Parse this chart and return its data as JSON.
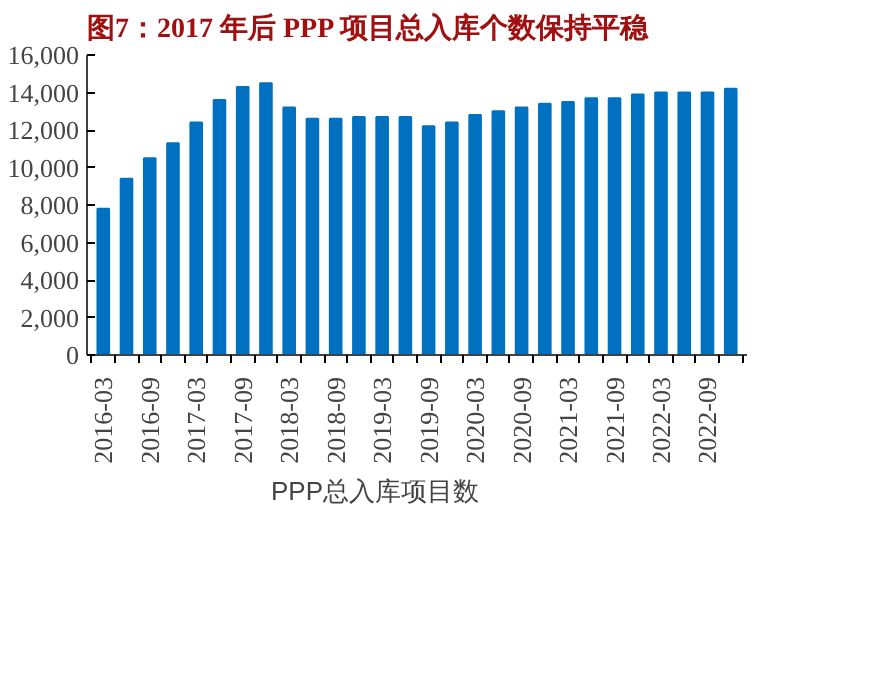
{
  "chart_data": {
    "type": "bar",
    "title": "图7：2017 年后 PPP 项目总入库个数保持平稳",
    "categories": [
      "2016-03",
      null,
      "2016-09",
      null,
      "2017-03",
      null,
      "2017-09",
      null,
      "2018-03",
      null,
      "2018-09",
      null,
      "2019-03",
      null,
      "2019-09",
      null,
      "2020-03",
      null,
      "2020-09",
      null,
      "2021-03",
      null,
      "2021-09",
      null,
      "2022-03",
      null,
      "2022-09",
      null
    ],
    "series": [
      {
        "name": "PPP总入库项目数",
        "color": "#0070c0",
        "values": [
          7800,
          9400,
          10500,
          11300,
          12400,
          13600,
          14300,
          14500,
          13200,
          12600,
          12600,
          12700,
          12700,
          12700,
          12200,
          12400,
          12800,
          13000,
          13200,
          13400,
          13500,
          13700,
          13700,
          13900,
          14000,
          14000,
          14000,
          14200
        ]
      }
    ],
    "ylim": [
      0,
      16000
    ],
    "yticks": [
      {
        "value": 0,
        "label": "0"
      },
      {
        "value": 2000,
        "label": "2,000"
      },
      {
        "value": 4000,
        "label": "4,000"
      },
      {
        "value": 6000,
        "label": "6,000"
      },
      {
        "value": 8000,
        "label": "8,000"
      },
      {
        "value": 10000,
        "label": "10,000"
      },
      {
        "value": 12000,
        "label": "12,000"
      },
      {
        "value": 14000,
        "label": "14,000"
      },
      {
        "value": 16000,
        "label": "16,000"
      }
    ],
    "grid": false,
    "legend": "bottom"
  }
}
